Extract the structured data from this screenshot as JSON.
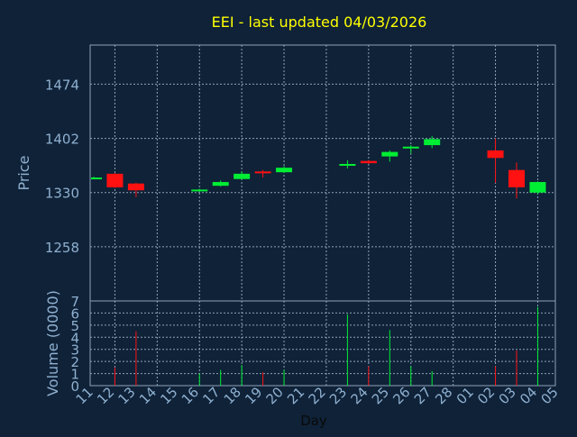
{
  "chart_data": {
    "type": "candlestick",
    "title": "EEI - last updated 04/03/2026",
    "ylabel": "Price",
    "volume_label": "Volume (0000)",
    "xlabel": "Day",
    "grid": true,
    "price_ticks": [
      "1258",
      "1330",
      "1402",
      "1474"
    ],
    "volume_ticks": [
      "0",
      "1",
      "2",
      "3",
      "4",
      "5",
      "6",
      "7"
    ],
    "x_tick_labels": [
      "11",
      "12",
      "13",
      "14",
      "15",
      "16",
      "17",
      "18",
      "19",
      "20",
      "21",
      "22",
      "23",
      "24",
      "25",
      "26",
      "27",
      "28",
      "01",
      "02",
      "03",
      "04",
      "05"
    ],
    "price_range": [
      1186,
      1526
    ],
    "volume_range": [
      0,
      7
    ],
    "colors": {
      "background": "#0f2238",
      "grid": "#8fa3b8",
      "axis_text": "#8fb0d0",
      "title": "#ffff00",
      "up": "#00ee33",
      "down": "#ff1111"
    },
    "candles": [
      {
        "day": "11",
        "open": 1350,
        "close": 1350,
        "high": 1351,
        "low": 1349,
        "volume": 0.0
      },
      {
        "day": "12",
        "open": 1355,
        "close": 1337,
        "high": 1356,
        "low": 1336,
        "volume": 1.5
      },
      {
        "day": "13",
        "open": 1342,
        "close": 1333,
        "high": 1343,
        "low": 1324,
        "volume": 4.5
      },
      {
        "day": "16",
        "open": 1332,
        "close": 1334,
        "high": 1335,
        "low": 1331,
        "volume": 1.0
      },
      {
        "day": "17",
        "open": 1339,
        "close": 1344,
        "high": 1346,
        "low": 1338,
        "volume": 1.3
      },
      {
        "day": "18",
        "open": 1348,
        "close": 1355,
        "high": 1358,
        "low": 1347,
        "volume": 1.7
      },
      {
        "day": "19",
        "open": 1358,
        "close": 1357,
        "high": 1360,
        "low": 1350,
        "volume": 1.1
      },
      {
        "day": "20",
        "open": 1357,
        "close": 1363,
        "high": 1365,
        "low": 1356,
        "volume": 1.3
      },
      {
        "day": "23",
        "open": 1366,
        "close": 1368,
        "high": 1373,
        "low": 1362,
        "volume": 5.9
      },
      {
        "day": "24",
        "open": 1372,
        "close": 1369,
        "high": 1373,
        "low": 1368,
        "volume": 1.6
      },
      {
        "day": "25",
        "open": 1378,
        "close": 1384,
        "high": 1386,
        "low": 1371,
        "volume": 4.6
      },
      {
        "day": "26",
        "open": 1389,
        "close": 1391,
        "high": 1393,
        "low": 1382,
        "volume": 1.6
      },
      {
        "day": "27",
        "open": 1393,
        "close": 1401,
        "high": 1405,
        "low": 1389,
        "volume": 1.2
      },
      {
        "day": "02",
        "open": 1386,
        "close": 1376,
        "high": 1402,
        "low": 1343,
        "volume": 1.6
      },
      {
        "day": "03",
        "open": 1360,
        "close": 1337,
        "high": 1370,
        "low": 1322,
        "volume": 2.9
      },
      {
        "day": "04",
        "open": 1330,
        "close": 1344,
        "high": 1345,
        "low": 1328,
        "volume": 6.5
      }
    ]
  }
}
